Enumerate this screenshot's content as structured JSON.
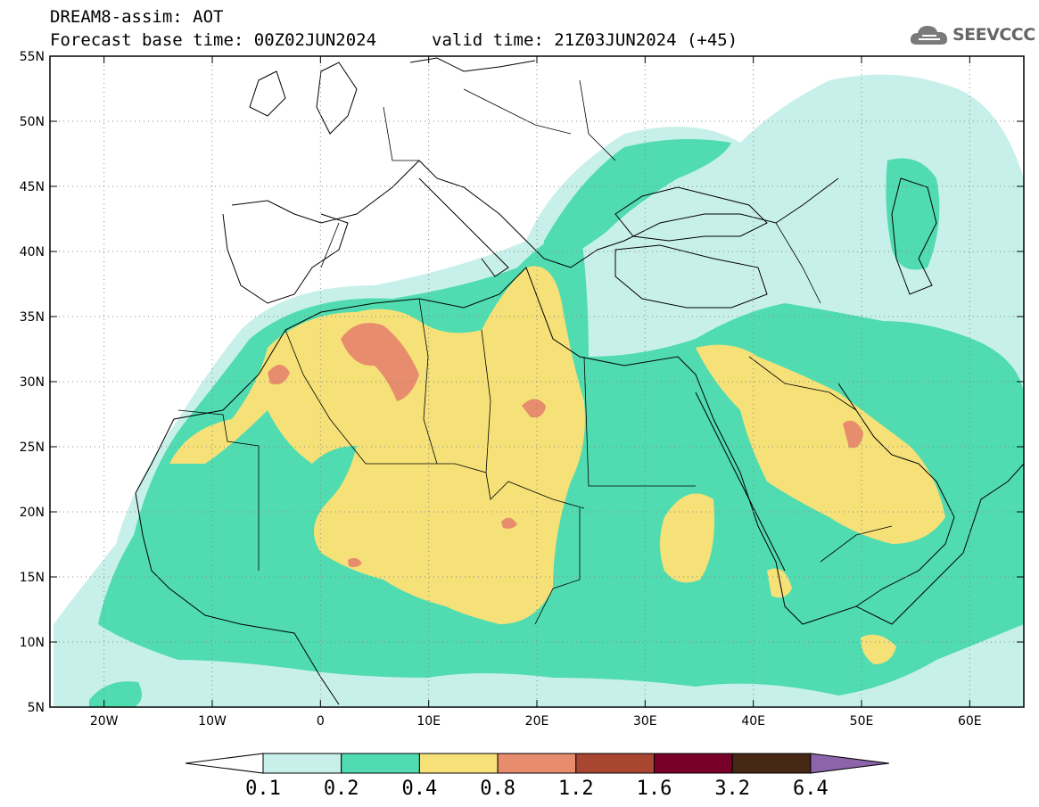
{
  "header": {
    "title_line1": "DREAM8-assim: AOT",
    "title_line2": "Forecast base time: 00Z02JUN2024",
    "valid_time": "valid time: 21Z03JUN2024 (+45)"
  },
  "logo": {
    "text": "SEEVCCC",
    "icon": "cloud-icon"
  },
  "map": {
    "lon_range": [
      -25,
      65
    ],
    "lat_range": [
      5,
      55
    ],
    "lat_ticks": [
      "5N",
      "10N",
      "15N",
      "20N",
      "25N",
      "30N",
      "35N",
      "40N",
      "45N",
      "50N",
      "55N"
    ],
    "lon_ticks": [
      "20W",
      "10W",
      "0",
      "10E",
      "20E",
      "30E",
      "40E",
      "50E",
      "60E"
    ],
    "grid": "dotted"
  },
  "legend": {
    "levels": [
      "0.1",
      "0.2",
      "0.4",
      "0.8",
      "1.2",
      "1.6",
      "3.2",
      "6.4"
    ],
    "colors": [
      "#ffffff",
      "#c8f0ea",
      "#50dcb0",
      "#f5e178",
      "#e88c6e",
      "#a84632",
      "#780028",
      "#462814",
      "#8c64aa"
    ]
  }
}
